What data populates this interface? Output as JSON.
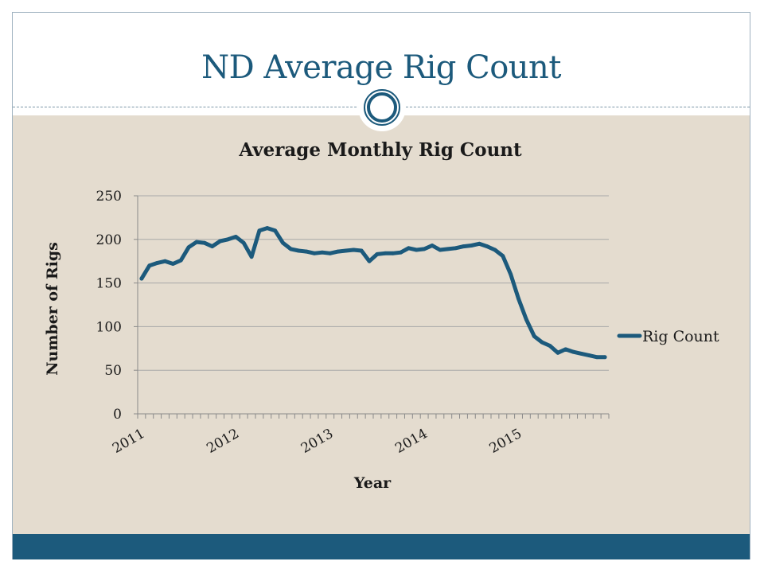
{
  "slide": {
    "title": "ND Average Rig Count"
  },
  "colors": {
    "accent": "#1c5a7c",
    "content_bg": "#e4dccf",
    "line": "#1c5a7c"
  },
  "chart_data": {
    "type": "line",
    "title": "Average Monthly Rig Count",
    "xlabel": "Year",
    "ylabel": "Number of Rigs",
    "ylim": [
      0,
      250
    ],
    "yticks": [
      0,
      50,
      100,
      150,
      200,
      250
    ],
    "xtick_labels": [
      "2011",
      "2012",
      "2013",
      "2014",
      "2015"
    ],
    "grid": "horizontal",
    "legend_position": "right",
    "series": [
      {
        "name": "Rig Count",
        "x": [
          "2011-01",
          "2011-02",
          "2011-03",
          "2011-04",
          "2011-05",
          "2011-06",
          "2011-07",
          "2011-08",
          "2011-09",
          "2011-10",
          "2011-11",
          "2011-12",
          "2012-01",
          "2012-02",
          "2012-03",
          "2012-04",
          "2012-05",
          "2012-06",
          "2012-07",
          "2012-08",
          "2012-09",
          "2012-10",
          "2012-11",
          "2012-12",
          "2013-01",
          "2013-02",
          "2013-03",
          "2013-04",
          "2013-05",
          "2013-06",
          "2013-07",
          "2013-08",
          "2013-09",
          "2013-10",
          "2013-11",
          "2013-12",
          "2014-01",
          "2014-02",
          "2014-03",
          "2014-04",
          "2014-05",
          "2014-06",
          "2014-07",
          "2014-08",
          "2014-09",
          "2014-10",
          "2014-11",
          "2014-12",
          "2015-01",
          "2015-02",
          "2015-03",
          "2015-04",
          "2015-05",
          "2015-06",
          "2015-07",
          "2015-08",
          "2015-09",
          "2015-10",
          "2015-11",
          "2015-12"
        ],
        "values": [
          155,
          170,
          173,
          175,
          172,
          176,
          191,
          197,
          196,
          192,
          198,
          200,
          203,
          196,
          180,
          210,
          213,
          210,
          196,
          189,
          187,
          186,
          184,
          185,
          184,
          186,
          187,
          188,
          187,
          175,
          183,
          184,
          184,
          185,
          190,
          188,
          189,
          193,
          188,
          189,
          190,
          192,
          193,
          195,
          192,
          188,
          181,
          160,
          132,
          108,
          89,
          82,
          78,
          70,
          74,
          71,
          69,
          67,
          65,
          65
        ]
      }
    ]
  }
}
